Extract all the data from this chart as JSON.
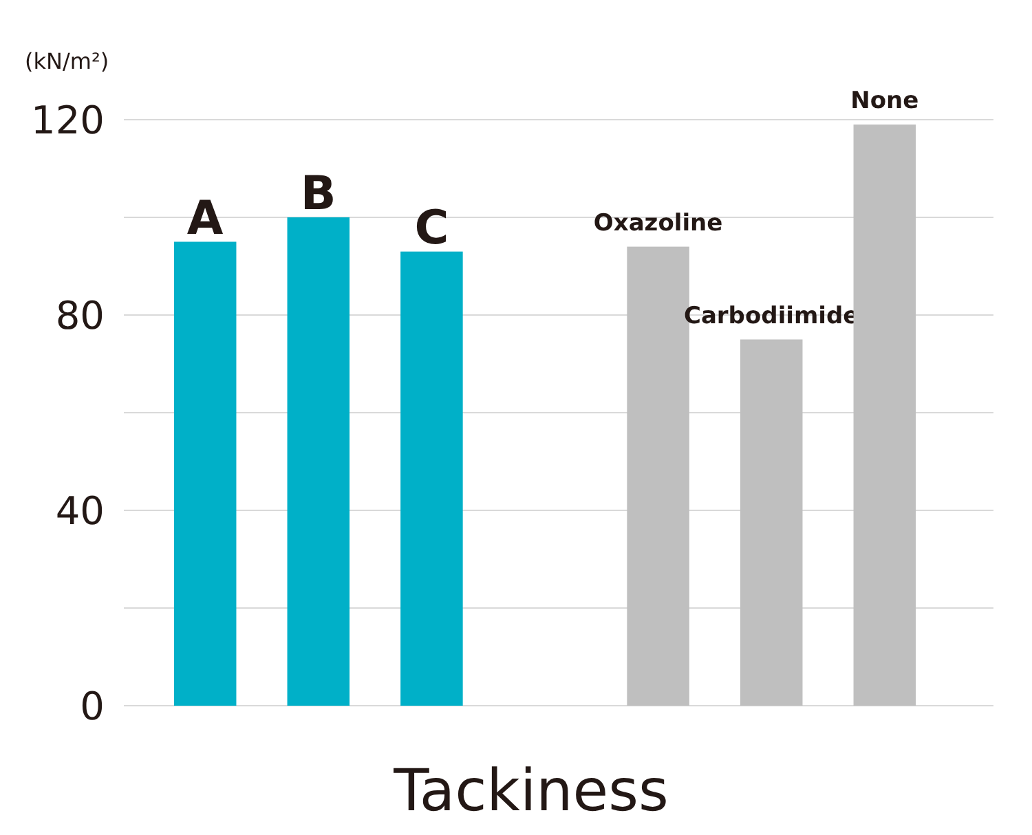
{
  "chart_data": {
    "type": "bar",
    "xlabel": "Tackiness",
    "ylabel": "(kN/m²)",
    "categories": [
      "A",
      "B",
      "C",
      null,
      "Oxazoline",
      "Carbodiimide",
      "None"
    ],
    "values": [
      95,
      100,
      93,
      null,
      94,
      75,
      119
    ],
    "colors": [
      "#00b0c8",
      "#00b0c8",
      "#00b0c8",
      null,
      "#bfbfbf",
      "#bfbfbf",
      "#bfbfbf"
    ],
    "ylim": [
      0,
      120
    ],
    "yticks": [
      0,
      {
        "value": 20,
        "label": null
      },
      40,
      {
        "value": 60,
        "label": null
      },
      80,
      {
        "value": 100,
        "label": null
      },
      120
    ],
    "grid": "y"
  }
}
